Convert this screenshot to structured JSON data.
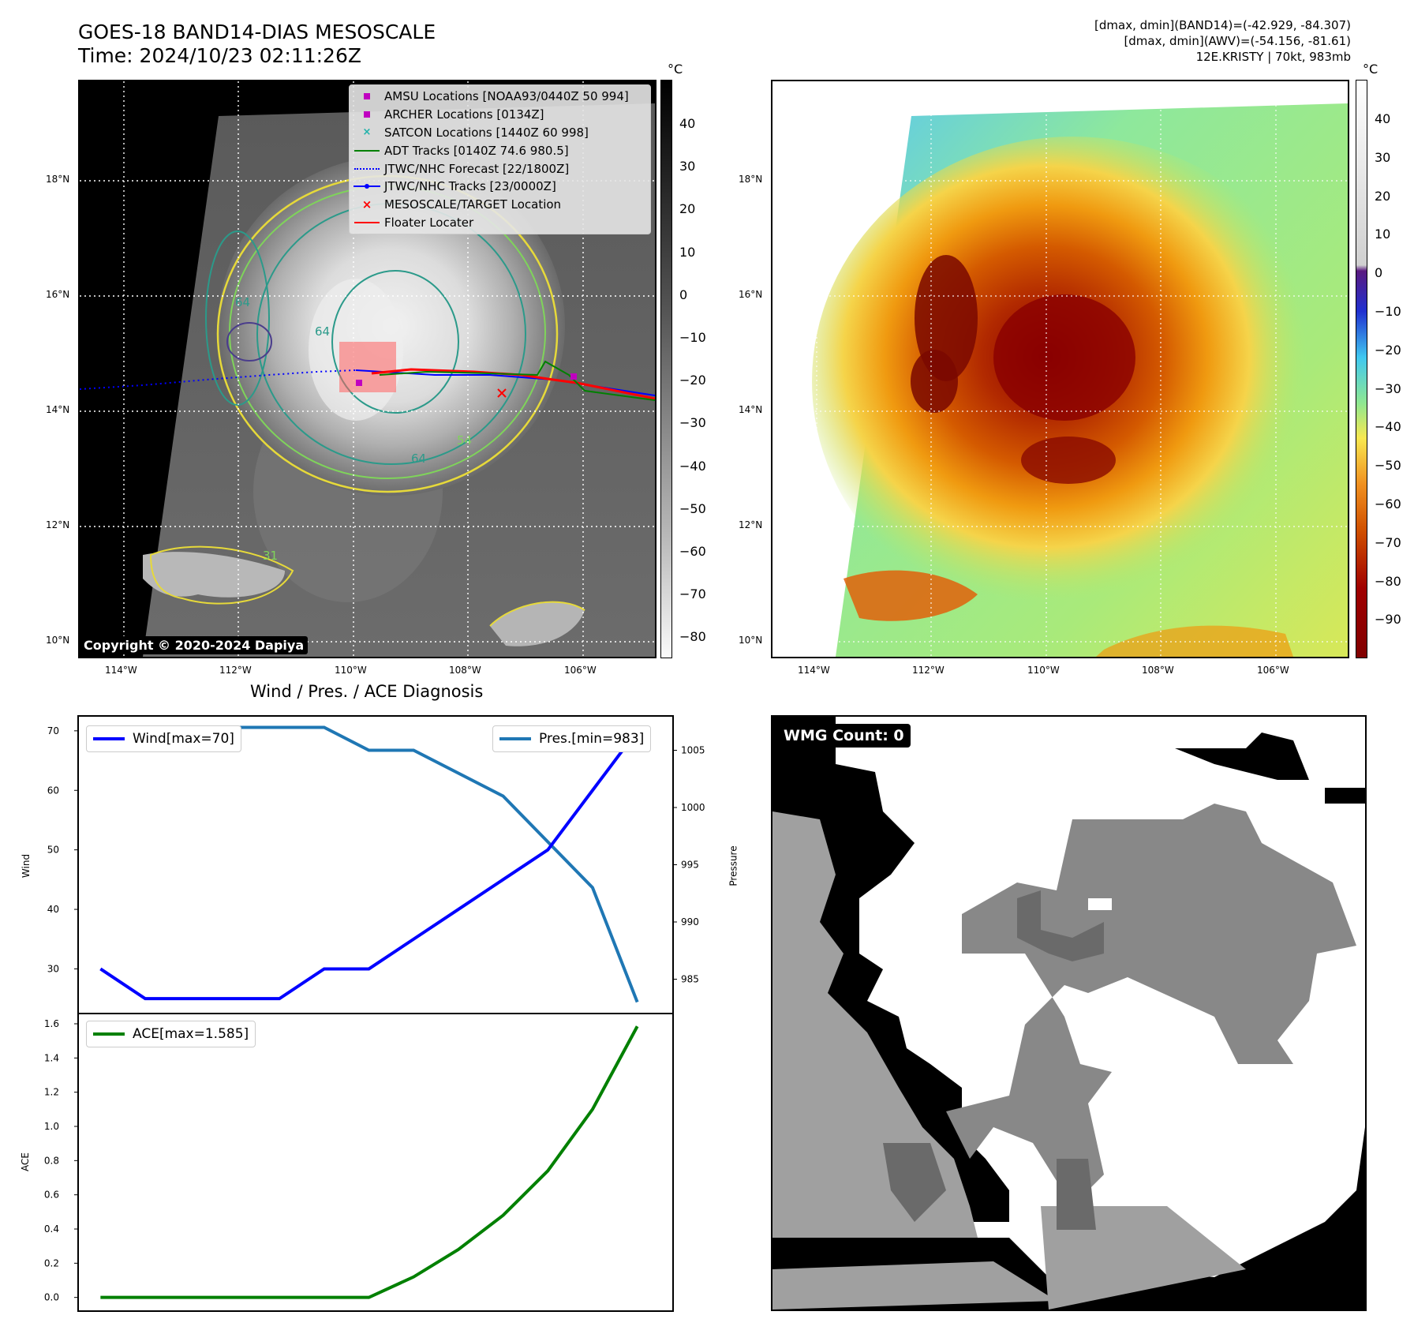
{
  "header": {
    "title_line1": "GOES-18 BAND14-DIAS MESOSCALE",
    "title_line2": "Time: 2024/10/23 02:11:26Z",
    "info_line1": "[dmax, dmin](BAND14)=(-42.929, -84.307)",
    "info_line2": "[dmax, dmin](AWV)=(-54.156, -81.61)",
    "info_line3": "12E.KRISTY | 70kt, 983mb"
  },
  "map": {
    "lat_labels": [
      "18°N",
      "16°N",
      "14°N",
      "12°N",
      "10°N"
    ],
    "lon_labels": [
      "114°W",
      "112°W",
      "110°W",
      "108°W",
      "106°W"
    ],
    "contour_labels": [
      "64",
      "64",
      "64",
      "54",
      "31"
    ],
    "copyright": "Copyright © 2020-2024 Dapiya",
    "legend": [
      {
        "label": "AMSU Locations [NOAA93/0440Z 50 994]",
        "color": "#c000c0",
        "symbol": "square"
      },
      {
        "label": "ARCHER Locations [0134Z]",
        "color": "#c000c0",
        "symbol": "square"
      },
      {
        "label": "SATCON Locations [1440Z 60 998]",
        "color": "#20b2aa",
        "symbol": "x"
      },
      {
        "label": "ADT Tracks [0140Z 74.6 980.5]",
        "color": "#008000",
        "symbol": "line"
      },
      {
        "label": "JTWC/NHC Forecast [22/1800Z]",
        "color": "#0000ff",
        "symbol": "dotted"
      },
      {
        "label": "JTWC/NHC Tracks [23/0000Z]",
        "color": "#0000ff",
        "symbol": "line-dot"
      },
      {
        "label": "MESOSCALE/TARGET Location",
        "color": "#ff0000",
        "symbol": "x"
      },
      {
        "label": "Floater Locater",
        "color": "#ff0000",
        "symbol": "line"
      }
    ]
  },
  "colorbars": {
    "unit": "°C",
    "gray_ticks": [
      "40",
      "30",
      "20",
      "10",
      "0",
      "−10",
      "−20",
      "−30",
      "−40",
      "−50",
      "−60",
      "−70",
      "−80"
    ],
    "color_ticks": [
      "40",
      "30",
      "20",
      "10",
      "0",
      "−10",
      "−20",
      "−30",
      "−40",
      "−50",
      "−60",
      "−70",
      "−80",
      "−90"
    ]
  },
  "wmg": {
    "label": "WMG Count: 0"
  },
  "chart_data": [
    {
      "type": "line",
      "title": "Wind / Pres. / ACE Diagnosis",
      "x": [
        0,
        1,
        2,
        3,
        4,
        5,
        6,
        7,
        8,
        9,
        10,
        11,
        12
      ],
      "series": [
        {
          "name": "Wind[max=70]",
          "axis": "left",
          "color": "#0000ff",
          "values": [
            30,
            25,
            25,
            25,
            25,
            30,
            30,
            35,
            40,
            45,
            50,
            60,
            70
          ]
        },
        {
          "name": "Pres.[min=983]",
          "axis": "right",
          "color": "#1f77b4",
          "values": [
            1006,
            1006,
            1006,
            1007,
            1007,
            1007,
            1005,
            1005,
            1003,
            1001,
            997,
            993,
            983
          ]
        }
      ],
      "ylabel": "Wind",
      "ylabel_right": "Pressure",
      "yticks": [
        "30",
        "40",
        "50",
        "60",
        "70"
      ],
      "yticks_right": [
        "985",
        "990",
        "995",
        "1000",
        "1005"
      ],
      "ylim": [
        22.5,
        72.5
      ],
      "ylim_right": [
        982,
        1008
      ]
    },
    {
      "type": "line",
      "x": [
        0,
        1,
        2,
        3,
        4,
        5,
        6,
        7,
        8,
        9,
        10,
        11,
        12
      ],
      "series": [
        {
          "name": "ACE[max=1.585]",
          "color": "#008000",
          "values": [
            0,
            0,
            0,
            0,
            0,
            0,
            0,
            0.12,
            0.28,
            0.48,
            0.74,
            1.1,
            1.585
          ]
        }
      ],
      "ylabel": "ACE",
      "yticks": [
        "0.0",
        "0.2",
        "0.4",
        "0.6",
        "0.8",
        "1.0",
        "1.2",
        "1.4",
        "1.6"
      ],
      "ylim": [
        -0.08,
        1.66
      ]
    }
  ]
}
